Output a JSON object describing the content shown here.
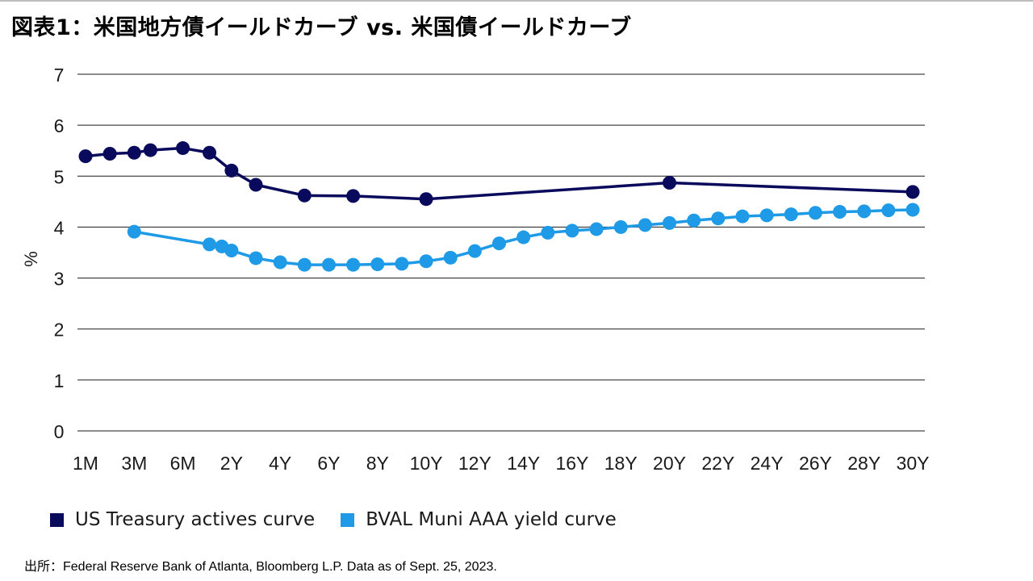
{
  "header": {
    "title": "図表1：米国地方債イールドカーブ vs. 米国債イールドカーブ"
  },
  "chart_data": {
    "type": "line",
    "ylabel": "%",
    "xlabel": "",
    "ylim": [
      0,
      7
    ],
    "yticks": [
      "0",
      "1",
      "2",
      "3",
      "4",
      "5",
      "6",
      "7"
    ],
    "grid": true,
    "legend_position": "bottom-left",
    "x_tick_labels": [
      "1M",
      "3M",
      "6M",
      "2Y",
      "4Y",
      "6Y",
      "8Y",
      "10Y",
      "12Y",
      "14Y",
      "16Y",
      "18Y",
      "20Y",
      "22Y",
      "24Y",
      "26Y",
      "28Y",
      "30Y"
    ],
    "series": [
      {
        "name": "US Treasury actives curve",
        "color": "#0a0a5c",
        "points": [
          {
            "x": "1M",
            "y": 5.39
          },
          {
            "x": "2M",
            "y": 5.44
          },
          {
            "x": "3M",
            "y": 5.46
          },
          {
            "x": "4M",
            "y": 5.51
          },
          {
            "x": "6M",
            "y": 5.55
          },
          {
            "x": "1Y",
            "y": 5.46
          },
          {
            "x": "2Y",
            "y": 5.11
          },
          {
            "x": "3Y",
            "y": 4.83
          },
          {
            "x": "5Y",
            "y": 4.62
          },
          {
            "x": "7Y",
            "y": 4.61
          },
          {
            "x": "10Y",
            "y": 4.55
          },
          {
            "x": "20Y",
            "y": 4.87
          },
          {
            "x": "30Y",
            "y": 4.69
          }
        ]
      },
      {
        "name": "BVAL Muni AAA yield curve",
        "color": "#1e9ae6",
        "points": [
          {
            "x": "3M",
            "y": 3.91
          },
          {
            "x": "1Y",
            "y": 3.66
          },
          {
            "x": "18M",
            "y": 3.62
          },
          {
            "x": "2Y",
            "y": 3.54
          },
          {
            "x": "3Y",
            "y": 3.39
          },
          {
            "x": "4Y",
            "y": 3.31
          },
          {
            "x": "5Y",
            "y": 3.26
          },
          {
            "x": "6Y",
            "y": 3.26
          },
          {
            "x": "7Y",
            "y": 3.26
          },
          {
            "x": "8Y",
            "y": 3.27
          },
          {
            "x": "9Y",
            "y": 3.28
          },
          {
            "x": "10Y",
            "y": 3.33
          },
          {
            "x": "11Y",
            "y": 3.4
          },
          {
            "x": "12Y",
            "y": 3.53
          },
          {
            "x": "13Y",
            "y": 3.68
          },
          {
            "x": "14Y",
            "y": 3.8
          },
          {
            "x": "15Y",
            "y": 3.89
          },
          {
            "x": "16Y",
            "y": 3.93
          },
          {
            "x": "17Y",
            "y": 3.96
          },
          {
            "x": "18Y",
            "y": 4.0
          },
          {
            "x": "19Y",
            "y": 4.04
          },
          {
            "x": "20Y",
            "y": 4.08
          },
          {
            "x": "21Y",
            "y": 4.13
          },
          {
            "x": "22Y",
            "y": 4.17
          },
          {
            "x": "23Y",
            "y": 4.21
          },
          {
            "x": "24Y",
            "y": 4.23
          },
          {
            "x": "25Y",
            "y": 4.25
          },
          {
            "x": "26Y",
            "y": 4.28
          },
          {
            "x": "27Y",
            "y": 4.3
          },
          {
            "x": "28Y",
            "y": 4.31
          },
          {
            "x": "29Y",
            "y": 4.33
          },
          {
            "x": "30Y",
            "y": 4.34
          }
        ]
      }
    ]
  },
  "legend": {
    "items": [
      {
        "label": "US Treasury actives curve",
        "color": "#0a0a5c"
      },
      {
        "label": "BVAL Muni AAA yield curve",
        "color": "#1e9ae6"
      }
    ]
  },
  "footer": {
    "source": "出所：Federal Reserve Bank of Atlanta, Bloomberg L.P. Data as of Sept. 25, 2023."
  }
}
